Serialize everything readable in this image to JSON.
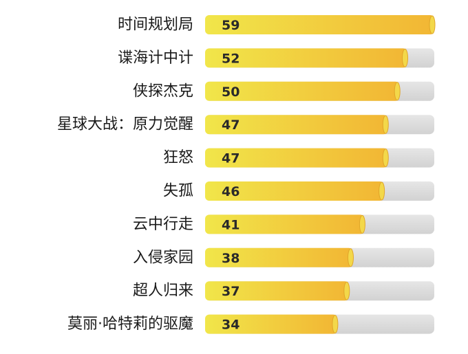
{
  "chart_data": {
    "type": "bar",
    "orientation": "horizontal",
    "categories": [
      "时间规划局",
      "谍海计中计",
      "侠探杰克",
      "星球大战：原力觉醒",
      "狂怒",
      "失孤",
      "云中行走",
      "入侵家园",
      "超人归来",
      "莫丽·哈特莉的驱魔"
    ],
    "values": [
      59,
      52,
      50,
      47,
      47,
      46,
      41,
      38,
      37,
      34
    ],
    "xlim": [
      0,
      59
    ],
    "grid": false,
    "legend": "none",
    "colors": {
      "bar_start": "#f1e64a",
      "bar_end": "#f2b634",
      "track": "#dcdcdc",
      "cap": "#f3d84a"
    }
  }
}
